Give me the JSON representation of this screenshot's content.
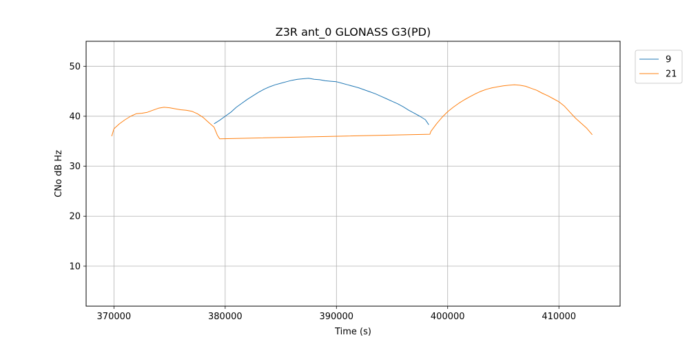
{
  "chart_data": {
    "type": "line",
    "title": "Z3R ant_0 GLONASS G3(PD)",
    "xlabel": "Time (s)",
    "ylabel": "CNo dB Hz",
    "xlim": [
      367500,
      415500
    ],
    "ylim": [
      2,
      55
    ],
    "xticks": [
      370000,
      380000,
      390000,
      400000,
      410000
    ],
    "yticks": [
      10,
      20,
      30,
      40,
      50
    ],
    "grid": true,
    "legend_position": "outside-top-right",
    "series": [
      {
        "name": "9",
        "color": "#1f77b4",
        "points": [
          [
            379000,
            38.5
          ],
          [
            379500,
            39.2
          ],
          [
            380000,
            40.0
          ],
          [
            380500,
            40.8
          ],
          [
            381000,
            41.8
          ],
          [
            381500,
            42.6
          ],
          [
            382000,
            43.4
          ],
          [
            382500,
            44.1
          ],
          [
            383000,
            44.8
          ],
          [
            383500,
            45.4
          ],
          [
            384000,
            45.9
          ],
          [
            384500,
            46.3
          ],
          [
            385000,
            46.6
          ],
          [
            385500,
            46.9
          ],
          [
            386000,
            47.2
          ],
          [
            386500,
            47.4
          ],
          [
            387000,
            47.5
          ],
          [
            387500,
            47.6
          ],
          [
            388000,
            47.4
          ],
          [
            388500,
            47.3
          ],
          [
            389000,
            47.1
          ],
          [
            389500,
            47.0
          ],
          [
            390000,
            46.9
          ],
          [
            390500,
            46.6
          ],
          [
            391000,
            46.3
          ],
          [
            391500,
            46.0
          ],
          [
            392000,
            45.7
          ],
          [
            392500,
            45.3
          ],
          [
            393000,
            44.9
          ],
          [
            393500,
            44.5
          ],
          [
            394000,
            44.0
          ],
          [
            394500,
            43.5
          ],
          [
            395000,
            43.0
          ],
          [
            395500,
            42.5
          ],
          [
            396000,
            41.9
          ],
          [
            396500,
            41.2
          ],
          [
            397000,
            40.6
          ],
          [
            397500,
            40.0
          ],
          [
            398000,
            39.3
          ],
          [
            398300,
            38.3
          ]
        ]
      },
      {
        "name": "21",
        "color": "#ff7f0e",
        "points": [
          [
            369800,
            36.0
          ],
          [
            370000,
            37.5
          ],
          [
            370500,
            38.5
          ],
          [
            371000,
            39.3
          ],
          [
            371500,
            40.0
          ],
          [
            372000,
            40.5
          ],
          [
            372500,
            40.6
          ],
          [
            373000,
            40.8
          ],
          [
            373500,
            41.2
          ],
          [
            374000,
            41.6
          ],
          [
            374500,
            41.8
          ],
          [
            375000,
            41.7
          ],
          [
            375500,
            41.5
          ],
          [
            376000,
            41.3
          ],
          [
            376500,
            41.2
          ],
          [
            377000,
            41.0
          ],
          [
            377500,
            40.5
          ],
          [
            378000,
            39.8
          ],
          [
            378500,
            38.8
          ],
          [
            379000,
            37.8
          ],
          [
            379300,
            36.2
          ],
          [
            379500,
            35.5
          ],
          [
            398400,
            36.4
          ],
          [
            398500,
            37.0
          ],
          [
            399000,
            38.5
          ],
          [
            399500,
            39.8
          ],
          [
            400000,
            40.9
          ],
          [
            400500,
            41.8
          ],
          [
            401000,
            42.6
          ],
          [
            401500,
            43.3
          ],
          [
            402000,
            43.9
          ],
          [
            402500,
            44.5
          ],
          [
            403000,
            45.0
          ],
          [
            403500,
            45.4
          ],
          [
            404000,
            45.7
          ],
          [
            404500,
            45.9
          ],
          [
            405000,
            46.1
          ],
          [
            405500,
            46.2
          ],
          [
            406000,
            46.3
          ],
          [
            406500,
            46.2
          ],
          [
            407000,
            46.0
          ],
          [
            407500,
            45.6
          ],
          [
            408000,
            45.2
          ],
          [
            408500,
            44.6
          ],
          [
            409000,
            44.1
          ],
          [
            409500,
            43.5
          ],
          [
            410000,
            42.9
          ],
          [
            410500,
            42.0
          ],
          [
            411000,
            40.8
          ],
          [
            411500,
            39.6
          ],
          [
            412000,
            38.6
          ],
          [
            412500,
            37.6
          ],
          [
            413000,
            36.3
          ]
        ]
      }
    ]
  }
}
